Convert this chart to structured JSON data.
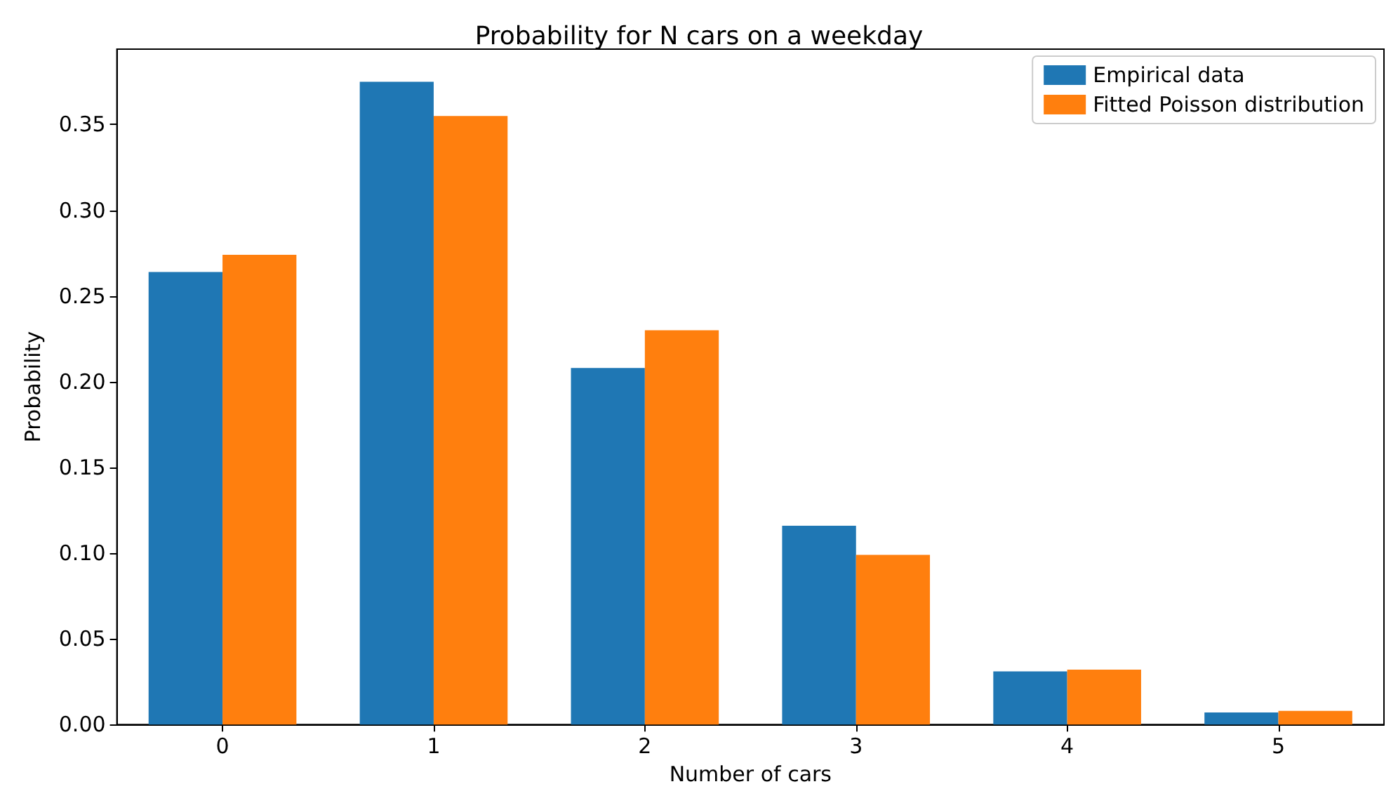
{
  "chart_data": {
    "type": "bar",
    "title": "Probability for N cars on a weekday",
    "xlabel": "Number of cars",
    "ylabel": "Probability",
    "categories": [
      "0",
      "1",
      "2",
      "3",
      "4",
      "5"
    ],
    "series": [
      {
        "name": "Empirical data",
        "color": "#1f77b4",
        "values": [
          0.264,
          0.375,
          0.208,
          0.116,
          0.031,
          0.007
        ]
      },
      {
        "name": "Fitted Poisson distribution",
        "color": "#ff7f0e",
        "values": [
          0.274,
          0.355,
          0.23,
          0.099,
          0.032,
          0.008
        ]
      }
    ],
    "ylim": [
      0,
      0.394
    ],
    "yticks": [
      {
        "value": 0,
        "label": "0.00"
      },
      {
        "value": 0.05,
        "label": "0.05"
      },
      {
        "value": 0.1,
        "label": "0.10"
      },
      {
        "value": 0.15,
        "label": "0.15"
      },
      {
        "value": 0.2,
        "label": "0.20"
      },
      {
        "value": 0.25,
        "label": "0.25"
      },
      {
        "value": 0.3,
        "label": "0.30"
      },
      {
        "value": 0.35,
        "label": "0.35"
      }
    ],
    "grid": false,
    "legend": "top right"
  }
}
